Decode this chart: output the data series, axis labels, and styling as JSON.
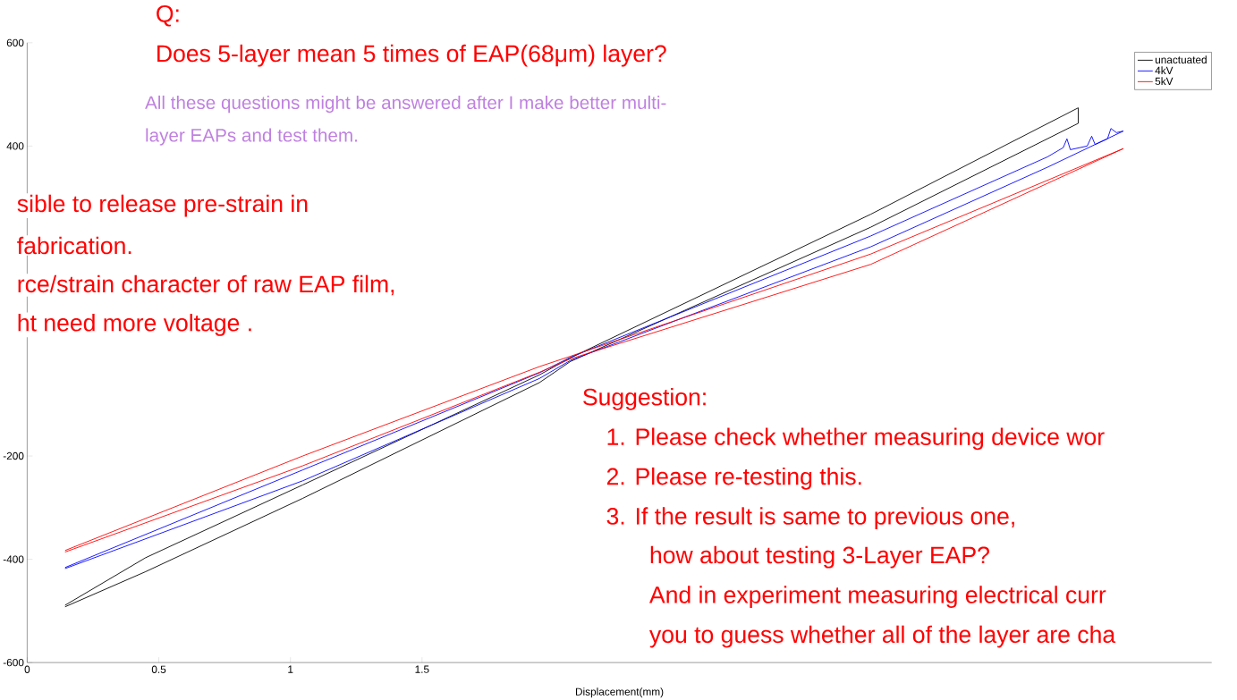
{
  "chart_data": {
    "type": "line",
    "xlabel": "Displacement(mm)",
    "xlim": [
      0,
      4.5
    ],
    "ylim": [
      -600,
      600
    ],
    "xticks": [
      0,
      0.5,
      1,
      1.5
    ],
    "yticks": [
      -600,
      -400,
      -200,
      400,
      600
    ],
    "legend": "top right",
    "series": [
      {
        "name": "unactuated",
        "color": "#000000",
        "x": [
          0.144,
          0.45,
          1.047,
          1.946,
          2.064,
          3.205,
          3.993,
          3.993,
          3.205,
          2.064,
          1.946,
          1.047,
          0.45,
          0.144
        ],
        "values": [
          -489,
          -397,
          -256,
          -43,
          -10,
          268,
          474,
          444,
          243,
          -17,
          -58,
          -282,
          -424,
          -492
        ]
      },
      {
        "name": "4kV",
        "color": "#0000ff",
        "x": [
          0.144,
          1.047,
          1.946,
          2.064,
          3.205,
          3.876,
          3.936,
          3.95,
          3.963,
          4.027,
          4.044,
          4.057,
          4.104,
          4.117,
          4.138,
          4.164,
          3.876,
          3.205,
          2.064,
          1.946,
          1.047,
          0.144
        ],
        "values": [
          -416,
          -227,
          -39,
          -9,
          226,
          379,
          397,
          414,
          393,
          400,
          419,
          403,
          414,
          434,
          426,
          429,
          359,
          205,
          -15,
          -50,
          -248,
          -418
        ]
      },
      {
        "name": "5kV",
        "color": "#ff0000",
        "x": [
          0.144,
          1.047,
          1.946,
          2.064,
          3.205,
          4.164,
          3.205,
          2.064,
          1.946,
          1.047,
          0.144
        ],
        "values": [
          -383,
          -200,
          -27,
          -7,
          191,
          395,
          171,
          -12,
          -38,
          -219,
          -386
        ]
      }
    ],
    "annotations": [
      "Q:",
      "Does 5-layer mean 5 times of EAP(68μm) layer?",
      "All these questions might be answered after I make better multi-",
      "layer EAPs and test them.",
      "sible to release  pre-strain in",
      "fabrication.",
      "rce/strain character of raw EAP film,",
      "ht need more voltage .",
      "Suggestion:",
      "1. Please check  whether measuring device wor",
      "2.  Please re-testing this.",
      "3.  If the result is same to previous one,",
      "how about testing 3-Layer EAP?",
      "And in experiment measuring electrical curr",
      "you to guess whether all of the layer are cha"
    ]
  }
}
